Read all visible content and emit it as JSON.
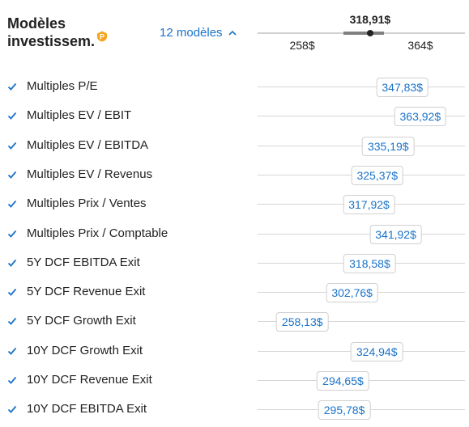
{
  "header": {
    "title_line1": "Modèles",
    "title_line2": "investissem.",
    "pro_icon": "pro-badge-icon",
    "models_toggle": "12 modèles",
    "toggle_icon": "chevron-up-icon"
  },
  "range": {
    "average": "318,91$",
    "min": "258$",
    "max": "364$",
    "scale_min": 218,
    "scale_max": 404,
    "band_low": 295,
    "band_high": 331,
    "avg_value": 318.91,
    "min_value": 258,
    "max_value": 364
  },
  "colors": {
    "accent": "#1a73c8",
    "check": "#1a73c8"
  },
  "rows": [
    {
      "label": "Multiples P/E",
      "value": "347,83$",
      "num": 347.83,
      "checked": true
    },
    {
      "label": "Multiples EV / EBIT",
      "value": "363,92$",
      "num": 363.92,
      "checked": true
    },
    {
      "label": "Multiples EV / EBITDA",
      "value": "335,19$",
      "num": 335.19,
      "checked": true
    },
    {
      "label": "Multiples EV / Revenus",
      "value": "325,37$",
      "num": 325.37,
      "checked": true
    },
    {
      "label": "Multiples Prix / Ventes",
      "value": "317,92$",
      "num": 317.92,
      "checked": true
    },
    {
      "label": "Multiples Prix / Comptable",
      "value": "341,92$",
      "num": 341.92,
      "checked": true
    },
    {
      "label": "5Y DCF EBITDA Exit",
      "value": "318,58$",
      "num": 318.58,
      "checked": true
    },
    {
      "label": "5Y DCF Revenue Exit",
      "value": "302,76$",
      "num": 302.76,
      "checked": true
    },
    {
      "label": "5Y DCF Growth Exit",
      "value": "258,13$",
      "num": 258.13,
      "checked": true
    },
    {
      "label": "10Y DCF Growth Exit",
      "value": "324,94$",
      "num": 324.94,
      "checked": true
    },
    {
      "label": "10Y DCF Revenue Exit",
      "value": "294,65$",
      "num": 294.65,
      "checked": true
    },
    {
      "label": "10Y DCF EBITDA Exit",
      "value": "295,78$",
      "num": 295.78,
      "checked": true
    }
  ]
}
